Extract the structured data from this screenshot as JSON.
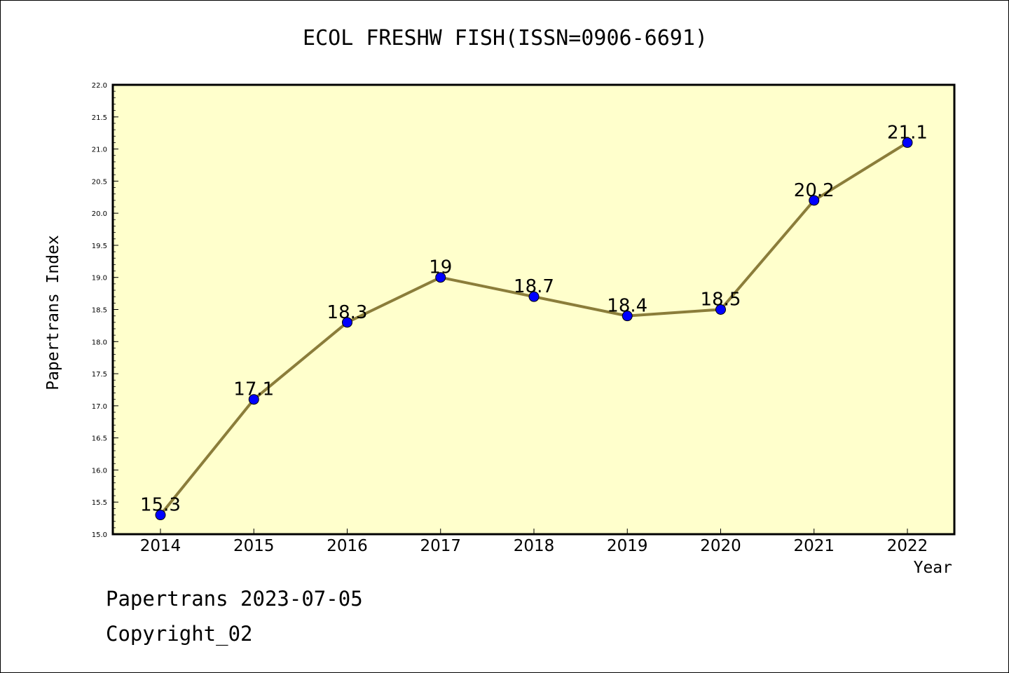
{
  "chart_data": {
    "type": "line",
    "title": "ECOL FRESHW FISH(ISSN=0906-6691)",
    "xlabel": "Year",
    "ylabel": "Papertrans Index",
    "categories": [
      "2014",
      "2015",
      "2016",
      "2017",
      "2018",
      "2019",
      "2020",
      "2021",
      "2022"
    ],
    "series": [
      {
        "values": [
          15.3,
          17.1,
          18.3,
          19.0,
          18.7,
          18.4,
          18.5,
          20.2,
          21.1
        ]
      }
    ],
    "data_labels": [
      "15.3",
      "17.1",
      "18.3",
      "19",
      "18.7",
      "18.4",
      "18.5",
      "20.2",
      "21.1"
    ],
    "ylim": [
      15.0,
      22.0
    ],
    "yticks": [
      "15.0",
      "15.5",
      "16.0",
      "16.5",
      "17.0",
      "17.5",
      "18.0",
      "18.5",
      "19.0",
      "19.5",
      "20.0",
      "20.5",
      "21.0",
      "21.5",
      "22.0"
    ],
    "colors": {
      "plot_background": "#ffffcc",
      "line": "#8b7d3a",
      "marker": "#0000ff"
    }
  },
  "footer": {
    "line1": "Papertrans 2023-07-05",
    "line2": "Copyright_02"
  }
}
